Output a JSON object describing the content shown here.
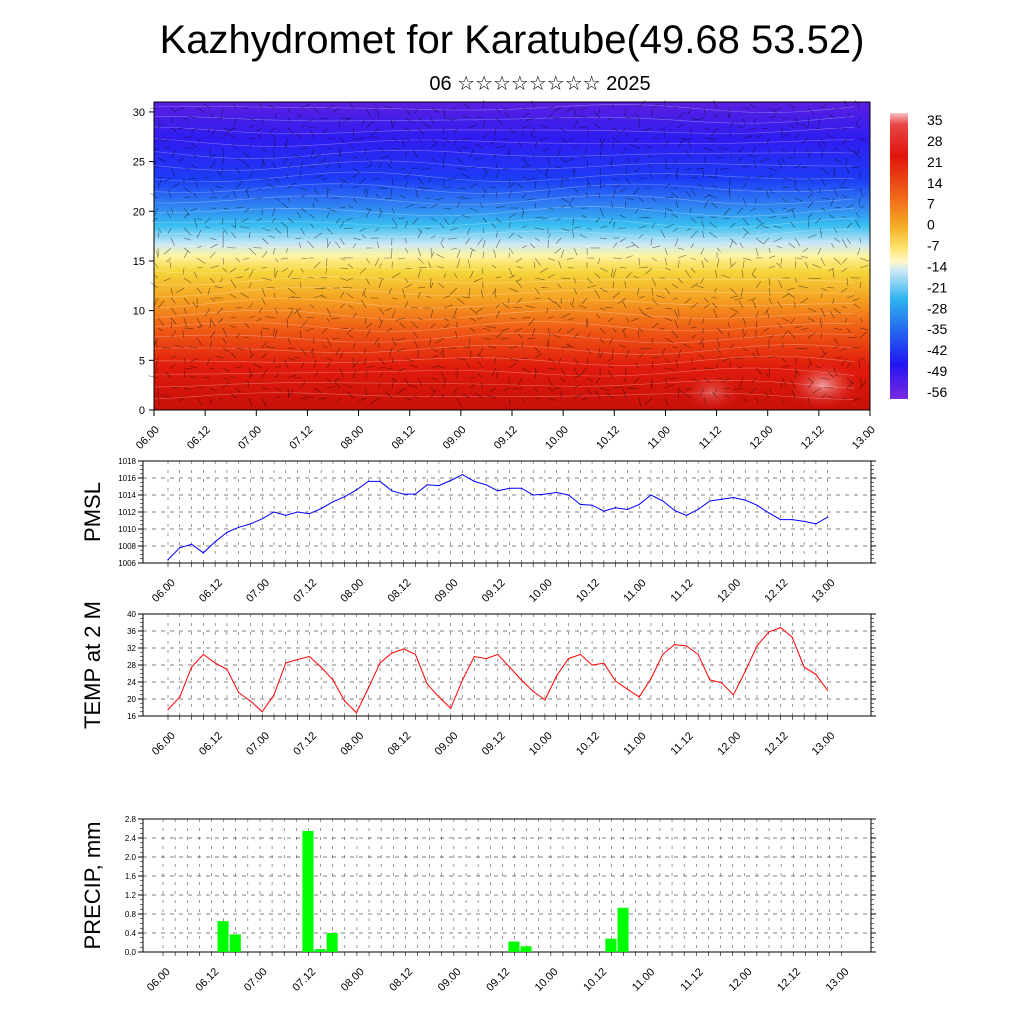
{
  "title": "Kazhydromet for Karatube(49.68 53.52)",
  "subtitle": "06 ☆☆☆☆☆☆☆☆ 2025",
  "time_labels": [
    "06.00",
    "06.12",
    "07.00",
    "07.12",
    "08.00",
    "08.12",
    "09.00",
    "09.12",
    "10.00",
    "10.12",
    "11.00",
    "11.12",
    "12.00",
    "12.12",
    "13.00"
  ],
  "chart_data": [
    {
      "type": "heatmap",
      "title": "",
      "y_ticks": [
        0,
        5,
        10,
        15,
        20,
        25,
        30
      ],
      "ylim": [
        0,
        31
      ],
      "colorbar_labels": [
        "35",
        "28",
        "21",
        "14",
        "7",
        "0",
        "-7",
        "-14",
        "-21",
        "-28",
        "-35",
        "-42",
        "-49",
        "-56"
      ],
      "overlay": "wind vectors"
    },
    {
      "type": "line",
      "ylabel": "PMSL",
      "ylim": [
        1006,
        1018
      ],
      "y_ticks": [
        1006,
        1008,
        1010,
        1012,
        1014,
        1016,
        1018
      ],
      "color": "#0000ff",
      "values": [
        1006.4,
        1007.8,
        1008.2,
        1007.2,
        1008.5,
        1009.6,
        1010.2,
        1010.6,
        1011.2,
        1012.0,
        1011.6,
        1012.0,
        1011.8,
        1012.4,
        1013.2,
        1013.8,
        1014.6,
        1015.6,
        1015.6,
        1014.5,
        1014.1,
        1014.1,
        1015.2,
        1015.1,
        1015.7,
        1016.4,
        1015.6,
        1015.2,
        1014.5,
        1014.8,
        1014.8,
        1014.0,
        1014.1,
        1014.3,
        1014.0,
        1012.9,
        1012.8,
        1012.1,
        1012.5,
        1012.3,
        1012.9,
        1014.0,
        1013.3,
        1012.2,
        1011.6,
        1012.3,
        1013.3,
        1013.5,
        1013.7,
        1013.4,
        1012.8,
        1011.9,
        1011.1,
        1011.1,
        1010.9,
        1010.6,
        1011.4
      ]
    },
    {
      "type": "line",
      "ylabel": "TEMP at 2 M",
      "ylim": [
        16,
        40
      ],
      "y_ticks": [
        16,
        20,
        24,
        28,
        32,
        36,
        40
      ],
      "color": "#ff0000",
      "values": [
        17.5,
        20.5,
        27.5,
        30.5,
        28.5,
        27.0,
        21.5,
        19.5,
        17.0,
        21.0,
        28.5,
        29.3,
        30.0,
        27.5,
        24.5,
        19.5,
        16.8,
        22.5,
        28.5,
        30.8,
        31.8,
        30.5,
        23.5,
        20.5,
        17.8,
        24.5,
        30.0,
        29.5,
        30.5,
        27.5,
        24.5,
        21.8,
        19.8,
        25.5,
        29.5,
        30.5,
        28.0,
        28.4,
        24.2,
        22.3,
        20.5,
        24.8,
        30.5,
        32.8,
        32.5,
        30.5,
        24.5,
        23.8,
        21.0,
        26.5,
        32.5,
        35.8,
        36.8,
        34.5,
        27.5,
        25.8,
        22.0
      ]
    },
    {
      "type": "bar",
      "ylabel": "PRECIP, mm",
      "ylim": [
        0,
        2.8
      ],
      "y_ticks": [
        "0.0",
        "0.4",
        "0.8",
        "1.2",
        "1.6",
        "2.0",
        "2.4",
        "2.8"
      ],
      "color": "#00ff00",
      "bars": [
        {
          "step": 5,
          "value": 0.65
        },
        {
          "step": 6,
          "value": 0.37
        },
        {
          "step": 12,
          "value": 2.55
        },
        {
          "step": 13,
          "value": 0.06
        },
        {
          "step": 14,
          "value": 0.4
        },
        {
          "step": 29,
          "value": 0.22
        },
        {
          "step": 30,
          "value": 0.12
        },
        {
          "step": 37,
          "value": 0.28
        },
        {
          "step": 38,
          "value": 0.93
        }
      ]
    }
  ]
}
